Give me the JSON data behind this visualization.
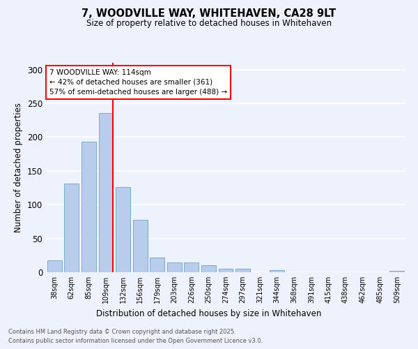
{
  "title_line1": "7, WOODVILLE WAY, WHITEHAVEN, CA28 9LT",
  "title_line2": "Size of property relative to detached houses in Whitehaven",
  "xlabel": "Distribution of detached houses by size in Whitehaven",
  "ylabel": "Number of detached properties",
  "categories": [
    "38sqm",
    "62sqm",
    "85sqm",
    "109sqm",
    "132sqm",
    "156sqm",
    "179sqm",
    "203sqm",
    "226sqm",
    "250sqm",
    "274sqm",
    "297sqm",
    "321sqm",
    "344sqm",
    "368sqm",
    "391sqm",
    "415sqm",
    "438sqm",
    "462sqm",
    "485sqm",
    "509sqm"
  ],
  "values": [
    18,
    131,
    193,
    236,
    126,
    77,
    22,
    14,
    14,
    10,
    5,
    5,
    0,
    3,
    0,
    0,
    0,
    0,
    0,
    0,
    2
  ],
  "bar_color": "#b8ccec",
  "bar_edge_color": "#7aaad0",
  "vline_color": "red",
  "annotation_text": "7 WOODVILLE WAY: 114sqm\n← 42% of detached houses are smaller (361)\n57% of semi-detached houses are larger (488) →",
  "annotation_box_color": "white",
  "annotation_box_edge_color": "red",
  "footnote_line1": "Contains HM Land Registry data © Crown copyright and database right 2025.",
  "footnote_line2": "Contains public sector information licensed under the Open Government Licence v3.0.",
  "background_color": "#eef2fc",
  "grid_color": "white",
  "ylim": [
    0,
    310
  ],
  "yticks": [
    0,
    50,
    100,
    150,
    200,
    250,
    300
  ]
}
